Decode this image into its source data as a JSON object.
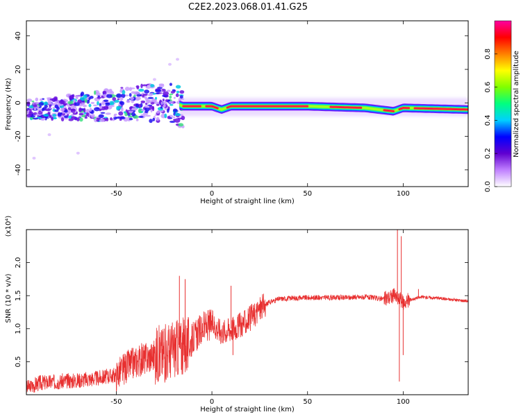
{
  "title": "C2E2.2023.068.01.41.G25",
  "chart_data": [
    {
      "type": "heatmap",
      "xlabel": "Height of straight line (km)",
      "ylabel": "Frequency (Hz)",
      "xlim": [
        -97,
        134
      ],
      "ylim": [
        -50,
        49
      ],
      "x_ticks": [
        -50,
        0,
        50,
        100
      ],
      "y_ticks": [
        -40,
        -20,
        0,
        20,
        40
      ],
      "colorbar": {
        "label": "Normalized spectral amplitude",
        "range": [
          0,
          1
        ],
        "ticks": [
          "0.0",
          "0.2",
          "0.4",
          "0.6",
          "0.8"
        ],
        "colors": [
          "#ffffff",
          "#c080ff",
          "#6000d0",
          "#0000ff",
          "#00d0ff",
          "#00ff80",
          "#80ff00",
          "#ffff00",
          "#ff8000",
          "#ff0000",
          "#ff00a0"
        ]
      },
      "ridge": [
        {
          "x": -97,
          "y": -4
        },
        {
          "x": -80,
          "y": -3
        },
        {
          "x": -60,
          "y": -2
        },
        {
          "x": -40,
          "y": 0
        },
        {
          "x": -20,
          "y": 0
        },
        {
          "x": -15,
          "y": -2
        },
        {
          "x": 0,
          "y": -2
        },
        {
          "x": 5,
          "y": -4
        },
        {
          "x": 10,
          "y": -2
        },
        {
          "x": 50,
          "y": -2
        },
        {
          "x": 80,
          "y": -3
        },
        {
          "x": 95,
          "y": -5
        },
        {
          "x": 100,
          "y": -3
        },
        {
          "x": 134,
          "y": -4
        }
      ]
    },
    {
      "type": "line",
      "xlabel": "Height of straight line (km)",
      "ylabel": "SNR (10 * v/v)",
      "scale_note": "(x10⁴)",
      "xlim": [
        -97,
        134
      ],
      "ylim": [
        0,
        2.5
      ],
      "x_ticks": [
        -50,
        0,
        50,
        100
      ],
      "y_ticks": [
        "0.5",
        "1.0",
        "1.5",
        "2.0"
      ],
      "color": "#e83030",
      "points": [
        {
          "x": -97,
          "y": 0.1
        },
        {
          "x": -90,
          "y": 0.18
        },
        {
          "x": -80,
          "y": 0.2
        },
        {
          "x": -70,
          "y": 0.22
        },
        {
          "x": -60,
          "y": 0.25
        },
        {
          "x": -50,
          "y": 0.3
        },
        {
          "x": -45,
          "y": 0.42
        },
        {
          "x": -40,
          "y": 0.5
        },
        {
          "x": -35,
          "y": 0.55
        },
        {
          "x": -30,
          "y": 0.6
        },
        {
          "x": -25,
          "y": 0.62
        },
        {
          "x": -20,
          "y": 0.7
        },
        {
          "x": -15,
          "y": 0.72
        },
        {
          "x": -12,
          "y": 0.75
        },
        {
          "x": -10,
          "y": 0.85
        },
        {
          "x": -5,
          "y": 1.0
        },
        {
          "x": 0,
          "y": 1.08
        },
        {
          "x": 5,
          "y": 0.95
        },
        {
          "x": 10,
          "y": 1.0
        },
        {
          "x": 15,
          "y": 1.05
        },
        {
          "x": 20,
          "y": 1.15
        },
        {
          "x": 25,
          "y": 1.3
        },
        {
          "x": 30,
          "y": 1.4
        },
        {
          "x": 35,
          "y": 1.45
        },
        {
          "x": 40,
          "y": 1.46
        },
        {
          "x": 50,
          "y": 1.47
        },
        {
          "x": 60,
          "y": 1.47
        },
        {
          "x": 70,
          "y": 1.47
        },
        {
          "x": 80,
          "y": 1.48
        },
        {
          "x": 90,
          "y": 1.45
        },
        {
          "x": 95,
          "y": 1.5
        },
        {
          "x": 100,
          "y": 1.4
        },
        {
          "x": 105,
          "y": 1.45
        },
        {
          "x": 110,
          "y": 1.48
        },
        {
          "x": 115,
          "y": 1.47
        },
        {
          "x": 120,
          "y": 1.46
        },
        {
          "x": 125,
          "y": 1.44
        },
        {
          "x": 134,
          "y": 1.42
        }
      ],
      "spikes": [
        {
          "x": -25,
          "y": 1.0
        },
        {
          "x": -17,
          "y": 1.8
        },
        {
          "x": -14,
          "y": 1.75
        },
        {
          "x": 10,
          "y": 1.65
        },
        {
          "x": 11,
          "y": 0.6
        },
        {
          "x": 97,
          "y": 2.6
        },
        {
          "x": 98,
          "y": 0.2
        },
        {
          "x": 99,
          "y": 2.4
        },
        {
          "x": 100,
          "y": 0.6
        },
        {
          "x": 108,
          "y": 1.6
        }
      ]
    }
  ]
}
